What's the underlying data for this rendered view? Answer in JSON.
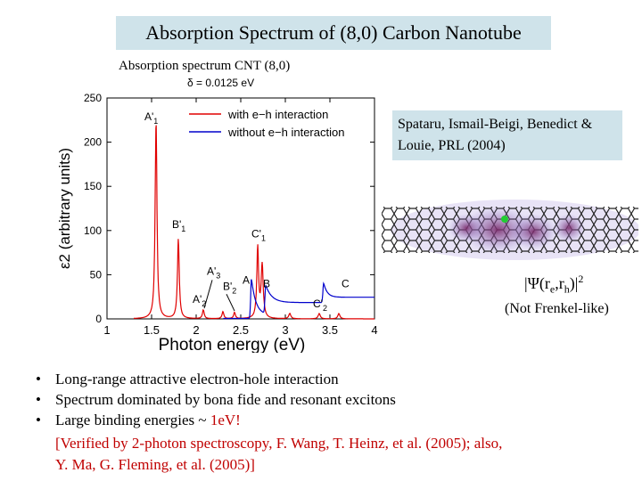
{
  "slide": {
    "title": "Absorption Spectrum of (8,0) Carbon Nanotube",
    "subtitle": "Absorption spectrum CNT (8,0)",
    "delta": "δ = 0.0125 eV",
    "reference_line1": "Spataru, Ismail-Beigi, Benedict &",
    "reference_line2": "Louie, PRL (2004)",
    "psi_label": "|Ψ(re,rh)|2",
    "not_frenkel": "(Not Frenkel-like)",
    "bullets": [
      "Long-range attractive electron-hole interaction",
      "Spectrum dominated by bona fide and resonant excitons",
      "Large binding energies ~ 1eV!"
    ],
    "binding_prefix": "Large binding energies ~ ",
    "binding_value": "1eV!",
    "verified_line1": "[Verified by 2-photon spectroscopy, F. Wang, T. Heinz, et al. (2005); also,",
    "verified_line2": "Y. Ma, G. Fleming, et al. (2005)]",
    "colors": {
      "header_bg": "#cfe3ea",
      "with_eh": "#e00000",
      "without_eh": "#0000cc",
      "highlight": "#c00000"
    }
  },
  "chart_data": {
    "type": "line",
    "xlabel": "Photon energy (eV)",
    "ylabel": "ε2 (arbitrary units)",
    "xlim": [
      1,
      4
    ],
    "ylim": [
      0,
      250
    ],
    "xticks": [
      "1",
      "1.5",
      "2",
      "2.5",
      "3",
      "3.5",
      "4"
    ],
    "yticks": [
      "0",
      "50",
      "100",
      "150",
      "200",
      "250"
    ],
    "legend_position": "top-right",
    "series": [
      {
        "name": "with e−h interaction",
        "color": "#e00000",
        "peaks": [
          {
            "x": 1.55,
            "y": 225,
            "w": 0.012
          },
          {
            "x": 1.8,
            "y": 90,
            "w": 0.012
          },
          {
            "x": 2.08,
            "y": 10,
            "w": 0.012
          },
          {
            "x": 2.3,
            "y": 8,
            "w": 0.012
          },
          {
            "x": 2.43,
            "y": 7,
            "w": 0.012
          },
          {
            "x": 2.69,
            "y": 80,
            "w": 0.012
          },
          {
            "x": 2.74,
            "y": 60,
            "w": 0.014
          },
          {
            "x": 3.05,
            "y": 6,
            "w": 0.014
          },
          {
            "x": 3.38,
            "y": 6,
            "w": 0.014
          },
          {
            "x": 3.6,
            "y": 6,
            "w": 0.014
          }
        ]
      },
      {
        "name": "without e−h interaction",
        "color": "#0000cc",
        "onsets": [
          {
            "x": 2.62,
            "y": 45,
            "decay": 0.05,
            "tail": 4
          },
          {
            "x": 2.78,
            "y": 32,
            "decay": 0.07,
            "tail": 14
          },
          {
            "x": 3.43,
            "y": 22,
            "decay": 0.04,
            "tail": 6
          }
        ]
      }
    ],
    "annotations": [
      {
        "text": "A'1",
        "x": 1.42,
        "y": 225
      },
      {
        "text": "B'1",
        "x": 1.73,
        "y": 103
      },
      {
        "text": "A'3",
        "x": 2.12,
        "y": 50
      },
      {
        "text": "B'2",
        "x": 2.3,
        "y": 33
      },
      {
        "text": "A",
        "x": 2.52,
        "y": 40
      },
      {
        "text": "A'2",
        "x": 1.96,
        "y": 18
      },
      {
        "text": "C'1",
        "x": 2.62,
        "y": 92
      },
      {
        "text": "B",
        "x": 2.75,
        "y": 36
      },
      {
        "text": "C'2",
        "x": 3.31,
        "y": 13
      },
      {
        "text": "C",
        "x": 3.63,
        "y": 36
      }
    ]
  }
}
